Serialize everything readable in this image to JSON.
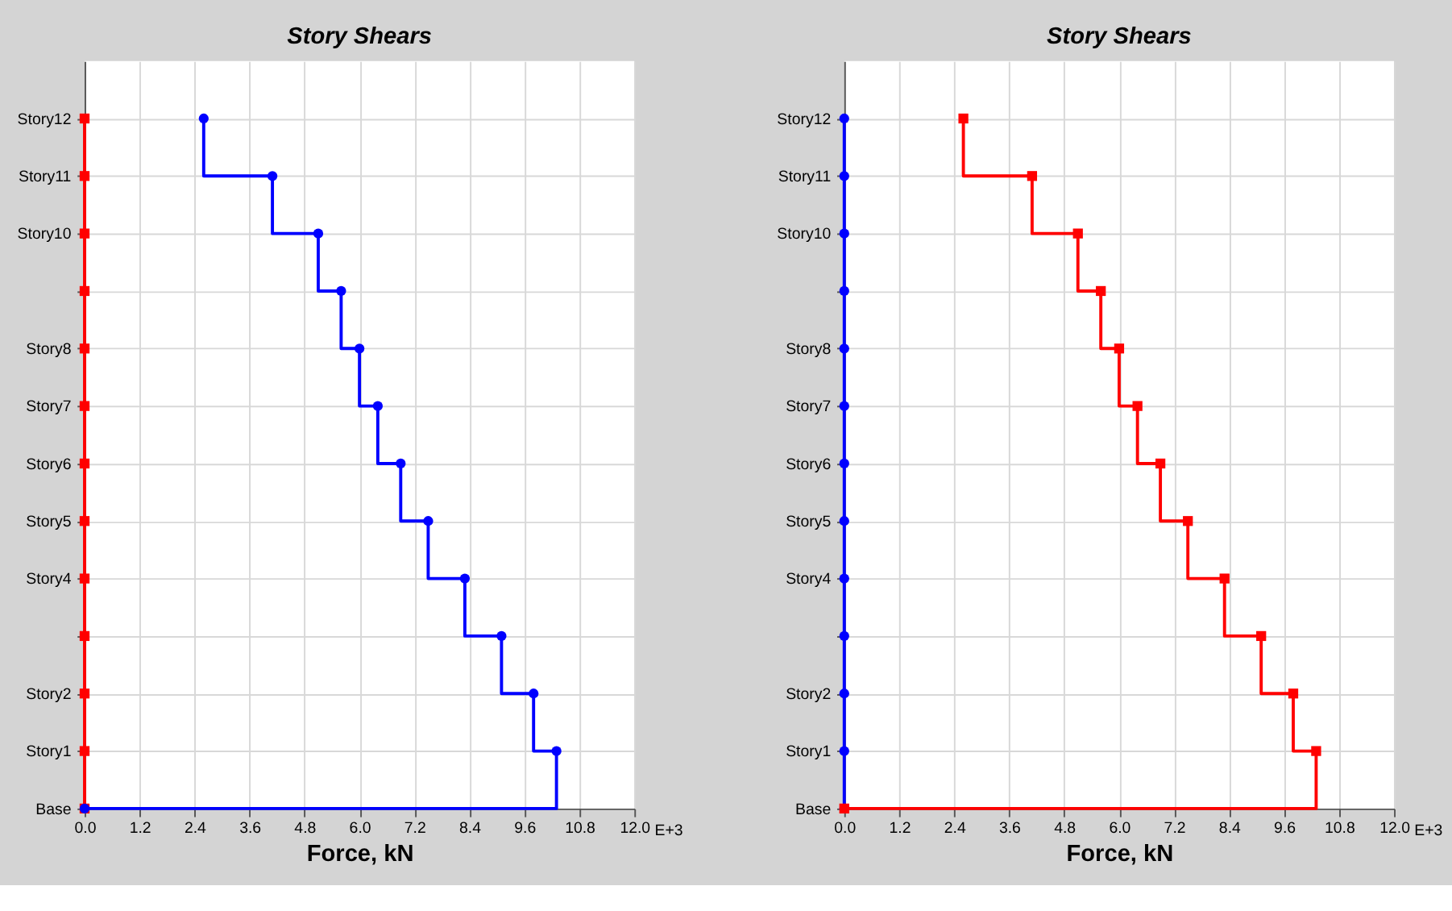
{
  "chart_data": [
    {
      "type": "step",
      "orientation": "horizontal",
      "title": "Story Shears",
      "xlabel": "Force, kN",
      "xlim": [
        0,
        12
      ],
      "xticks": [
        {
          "value": 0,
          "label": "0.0"
        },
        1.2,
        2.4,
        3.6,
        4.8,
        {
          "value": 6,
          "label": "6.0"
        },
        7.2,
        8.4,
        9.6,
        10.8,
        {
          "value": 12,
          "label": "12.0"
        }
      ],
      "categories": [
        "Story12",
        "Story11",
        "Story10",
        null,
        "Story8",
        "Story7",
        "Story6",
        "Story5",
        "Story4",
        null,
        "Story2",
        "Story1",
        "Base"
      ],
      "grid": true,
      "annotations": [
        "E+3"
      ],
      "series": [
        {
          "type": "line",
          "color": "#ff0000",
          "marker": "square",
          "values": [
            0,
            0,
            0,
            0,
            0,
            0,
            0,
            0,
            0,
            0,
            0,
            0,
            0
          ]
        },
        {
          "color": "#0000ff",
          "marker": "circle",
          "values": [
            2.6,
            4.1,
            5.1,
            5.6,
            6.0,
            6.4,
            6.9,
            7.5,
            8.3,
            9.1,
            9.8,
            10.3,
            0
          ]
        }
      ]
    },
    {
      "type": "step",
      "orientation": "horizontal",
      "title": "Story Shears",
      "xlabel": "Force, kN",
      "xlim": [
        0,
        12
      ],
      "xticks": [
        {
          "value": 0,
          "label": "0.0"
        },
        1.2,
        2.4,
        3.6,
        4.8,
        {
          "value": 6,
          "label": "6.0"
        },
        7.2,
        8.4,
        9.6,
        10.8,
        {
          "value": 12,
          "label": "12.0"
        }
      ],
      "categories": [
        "Story12",
        "Story11",
        "Story10",
        null,
        "Story8",
        "Story7",
        "Story6",
        "Story5",
        "Story4",
        null,
        "Story2",
        "Story1",
        "Base"
      ],
      "grid": true,
      "annotations": [
        "E+3"
      ],
      "series": [
        {
          "type": "line",
          "color": "#0000ff",
          "marker": "circle",
          "values": [
            0,
            0,
            0,
            0,
            0,
            0,
            0,
            0,
            0,
            0,
            0,
            0,
            0
          ]
        },
        {
          "color": "#ff0000",
          "marker": "square",
          "values": [
            2.6,
            4.1,
            5.1,
            5.6,
            6.0,
            6.4,
            6.9,
            7.5,
            8.3,
            9.1,
            9.8,
            10.3,
            0
          ]
        }
      ]
    }
  ]
}
